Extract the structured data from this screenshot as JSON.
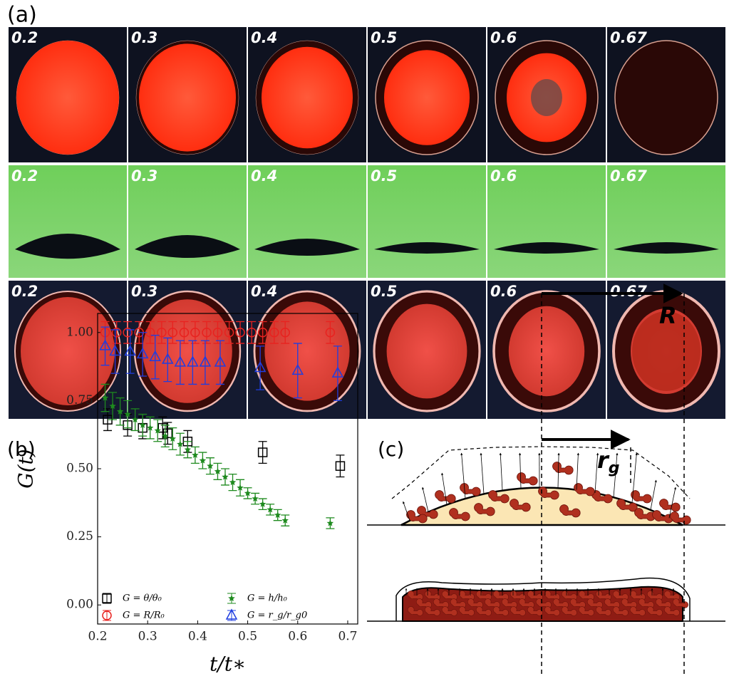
{
  "panel_a": {
    "label": "(a)",
    "times": [
      0.2,
      0.3,
      0.4,
      0.5,
      0.6,
      0.67
    ]
  },
  "chart_data": {
    "type": "scatter",
    "label": "(b)",
    "xlabel": "t/t∗",
    "ylabel": "G(t)",
    "xlim": [
      0.2,
      0.72
    ],
    "xticks": [
      0.2,
      0.3,
      0.4,
      0.5,
      0.6,
      0.7
    ],
    "ylim": [
      -0.07,
      1.07
    ],
    "yticks": [
      {
        "value": 0,
        "label": "0.00"
      },
      {
        "value": 0.25,
        "label": "0.25"
      },
      {
        "value": 0.5,
        "label": "0.50"
      },
      {
        "value": 0.75,
        "label": "0.75"
      },
      {
        "value": 1,
        "label": "1.00"
      }
    ],
    "grid": false,
    "legend": "lower left",
    "series": [
      {
        "name": "G = θ/θ₀",
        "color": "#000000",
        "marker": "square",
        "x": [
          0.22,
          0.26,
          0.29,
          0.33,
          0.34,
          0.38,
          0.53,
          0.685
        ],
        "values": [
          0.68,
          0.66,
          0.65,
          0.65,
          0.63,
          0.6,
          0.56,
          0.51
        ],
        "errors": [
          0.04,
          0.04,
          0.04,
          0.04,
          0.04,
          0.04,
          0.04,
          0.04
        ]
      },
      {
        "name": "G = R/R₀",
        "color": "#e8221f",
        "marker": "circle",
        "x": [
          0.215,
          0.238,
          0.26,
          0.283,
          0.305,
          0.328,
          0.35,
          0.373,
          0.395,
          0.418,
          0.44,
          0.463,
          0.485,
          0.508,
          0.53,
          0.553,
          0.575,
          0.665
        ],
        "values": [
          1,
          1,
          1,
          1,
          1,
          1,
          1,
          1,
          1,
          1,
          1,
          1,
          1,
          1,
          1,
          1,
          1,
          1
        ],
        "errors": [
          0.04,
          0.04,
          0.04,
          0.04,
          0.04,
          0.04,
          0.04,
          0.04,
          0.04,
          0.04,
          0.04,
          0.04,
          0.04,
          0.04,
          0.04,
          0.04,
          0.04,
          0.04
        ]
      },
      {
        "name": "G = h/h₀",
        "color": "#1e8a1e",
        "marker": "star",
        "x": [
          0.215,
          0.23,
          0.245,
          0.26,
          0.275,
          0.29,
          0.305,
          0.32,
          0.335,
          0.35,
          0.365,
          0.38,
          0.395,
          0.41,
          0.425,
          0.44,
          0.455,
          0.47,
          0.485,
          0.5,
          0.515,
          0.53,
          0.545,
          0.56,
          0.575,
          0.665
        ],
        "values": [
          0.76,
          0.73,
          0.71,
          0.7,
          0.68,
          0.66,
          0.65,
          0.64,
          0.62,
          0.61,
          0.59,
          0.57,
          0.55,
          0.53,
          0.51,
          0.49,
          0.47,
          0.45,
          0.43,
          0.41,
          0.39,
          0.37,
          0.35,
          0.33,
          0.31,
          0.3
        ],
        "errors": [
          0.05,
          0.05,
          0.05,
          0.05,
          0.04,
          0.04,
          0.04,
          0.04,
          0.04,
          0.04,
          0.04,
          0.03,
          0.03,
          0.03,
          0.03,
          0.03,
          0.03,
          0.03,
          0.03,
          0.02,
          0.02,
          0.02,
          0.02,
          0.02,
          0.02,
          0.02
        ]
      },
      {
        "name": "G = r_g/r_g0",
        "color": "#1f3ee0",
        "marker": "triangle",
        "x": [
          0.215,
          0.235,
          0.265,
          0.29,
          0.315,
          0.34,
          0.365,
          0.39,
          0.415,
          0.445,
          0.525,
          0.6,
          0.68
        ],
        "values": [
          0.95,
          0.93,
          0.93,
          0.92,
          0.91,
          0.9,
          0.89,
          0.89,
          0.89,
          0.89,
          0.87,
          0.86,
          0.85
        ],
        "errors": [
          0.07,
          0.08,
          0.08,
          0.08,
          0.08,
          0.08,
          0.08,
          0.08,
          0.08,
          0.08,
          0.08,
          0.1,
          0.1
        ]
      }
    ]
  },
  "panel_c": {
    "label": "(c)",
    "radius": "R",
    "gel_radius": {
      "symbol": "r",
      "subscript": "g"
    }
  }
}
